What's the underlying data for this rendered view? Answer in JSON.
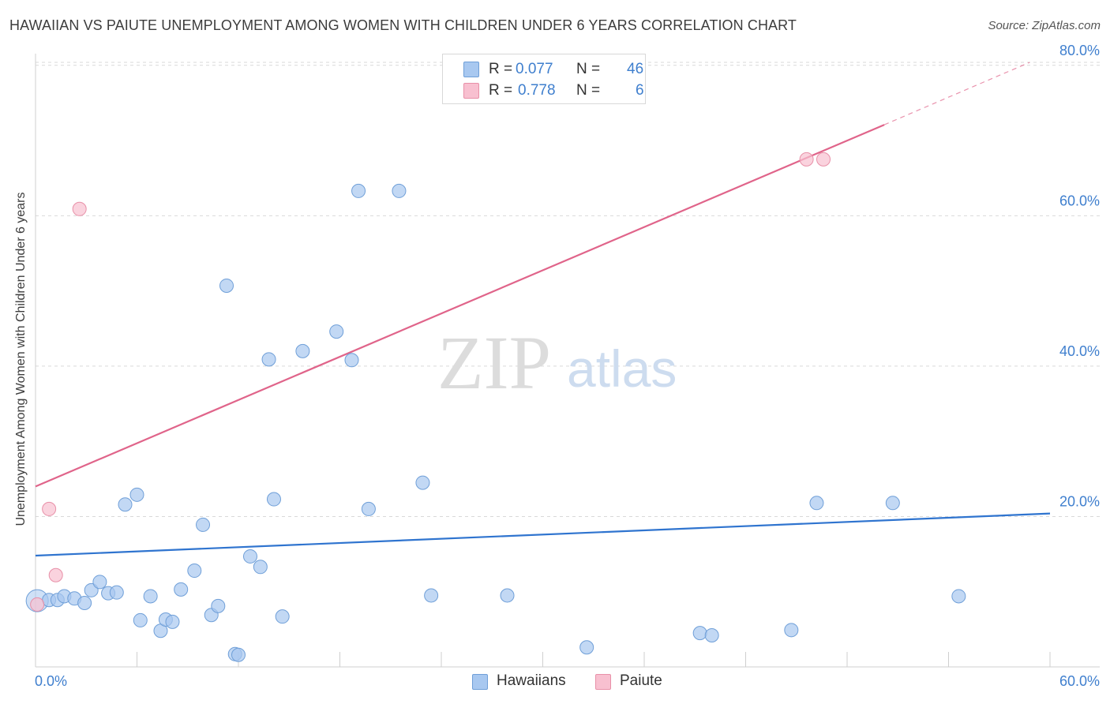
{
  "title": "HAWAIIAN VS PAIUTE UNEMPLOYMENT AMONG WOMEN WITH CHILDREN UNDER 6 YEARS CORRELATION CHART",
  "source": "Source: ZipAtlas.com",
  "watermark": {
    "zip": "ZIP",
    "atlas": "atlas"
  },
  "legend_top": {
    "rows": [
      {
        "r_label": "R =",
        "r_value": "0.077",
        "n_label": "N =",
        "n_value": "46",
        "color": "#a8c8f0",
        "border": "#6f9fd8"
      },
      {
        "r_label": "R =",
        "r_value": "0.778",
        "n_label": "N =",
        "n_value": "6",
        "color": "#f8c0d0",
        "border": "#e890a8"
      }
    ]
  },
  "legend_bottom": [
    {
      "label": "Hawaiians",
      "color": "#a8c8f0",
      "border": "#6f9fd8"
    },
    {
      "label": "Paiute",
      "color": "#f8c0d0",
      "border": "#e890a8"
    }
  ],
  "chart_data": {
    "type": "scatter",
    "title": "HAWAIIAN VS PAIUTE UNEMPLOYMENT AMONG WOMEN WITH CHILDREN UNDER 6 YEARS CORRELATION CHART",
    "xlabel": "",
    "ylabel": "Unemployment Among Women with Children Under 6 years",
    "xlim": [
      0,
      60
    ],
    "ylim": [
      0,
      80
    ],
    "x_tick_labels": [
      "0.0%",
      "60.0%"
    ],
    "y_tick_labels": [
      "20.0%",
      "40.0%",
      "60.0%",
      "80.0%"
    ],
    "y_ticks": [
      20,
      40,
      60,
      80
    ],
    "grid": true,
    "legend_position": "top-center",
    "series": [
      {
        "name": "Hawaiians",
        "color": "#a8c8f0",
        "stroke": "#6f9fd8",
        "line_color": "#2f74cf",
        "trend": {
          "x": [
            0,
            60
          ],
          "y": [
            14.8,
            20.4
          ]
        },
        "points": [
          {
            "x": 0.1,
            "y": 8.8,
            "big": true
          },
          {
            "x": 0.8,
            "y": 8.9
          },
          {
            "x": 1.3,
            "y": 8.9
          },
          {
            "x": 1.7,
            "y": 9.4
          },
          {
            "x": 2.3,
            "y": 9.1
          },
          {
            "x": 2.9,
            "y": 8.5
          },
          {
            "x": 3.3,
            "y": 10.2
          },
          {
            "x": 3.8,
            "y": 11.3
          },
          {
            "x": 4.3,
            "y": 9.8
          },
          {
            "x": 4.8,
            "y": 9.9
          },
          {
            "x": 5.3,
            "y": 21.6
          },
          {
            "x": 6.0,
            "y": 22.9
          },
          {
            "x": 6.2,
            "y": 6.2
          },
          {
            "x": 6.8,
            "y": 9.4
          },
          {
            "x": 7.4,
            "y": 4.8
          },
          {
            "x": 7.7,
            "y": 6.3
          },
          {
            "x": 8.1,
            "y": 6.0
          },
          {
            "x": 8.6,
            "y": 10.3
          },
          {
            "x": 9.4,
            "y": 12.8
          },
          {
            "x": 9.9,
            "y": 18.9
          },
          {
            "x": 10.4,
            "y": 6.9
          },
          {
            "x": 10.8,
            "y": 8.1
          },
          {
            "x": 11.3,
            "y": 50.7
          },
          {
            "x": 11.8,
            "y": 1.7
          },
          {
            "x": 12.0,
            "y": 1.6
          },
          {
            "x": 12.7,
            "y": 14.7
          },
          {
            "x": 13.3,
            "y": 13.3
          },
          {
            "x": 13.8,
            "y": 40.9
          },
          {
            "x": 14.1,
            "y": 22.3
          },
          {
            "x": 14.6,
            "y": 6.7
          },
          {
            "x": 15.8,
            "y": 42.0
          },
          {
            "x": 17.8,
            "y": 44.6
          },
          {
            "x": 18.7,
            "y": 40.8
          },
          {
            "x": 19.1,
            "y": 63.3
          },
          {
            "x": 19.7,
            "y": 21.0
          },
          {
            "x": 21.5,
            "y": 63.3
          },
          {
            "x": 22.9,
            "y": 24.5
          },
          {
            "x": 23.4,
            "y": 9.5
          },
          {
            "x": 27.9,
            "y": 9.5
          },
          {
            "x": 32.6,
            "y": 2.6
          },
          {
            "x": 39.3,
            "y": 4.5
          },
          {
            "x": 40.0,
            "y": 4.2
          },
          {
            "x": 44.7,
            "y": 4.9
          },
          {
            "x": 46.2,
            "y": 21.8
          },
          {
            "x": 50.7,
            "y": 21.8
          },
          {
            "x": 54.6,
            "y": 9.4
          }
        ]
      },
      {
        "name": "Paiute",
        "color": "#f8c0d0",
        "stroke": "#e890a8",
        "line_color": "#e0648a",
        "trend": {
          "x": [
            0,
            50.2
          ],
          "y": [
            24.0,
            72.1
          ]
        },
        "trend_ext": {
          "x": [
            50.2,
            58.8
          ],
          "y": [
            72.1,
            80.4
          ]
        },
        "points": [
          {
            "x": 0.1,
            "y": 8.3
          },
          {
            "x": 0.8,
            "y": 21.0
          },
          {
            "x": 1.2,
            "y": 12.2
          },
          {
            "x": 2.6,
            "y": 60.9
          },
          {
            "x": 45.6,
            "y": 67.5
          },
          {
            "x": 46.6,
            "y": 67.5
          }
        ]
      }
    ]
  }
}
